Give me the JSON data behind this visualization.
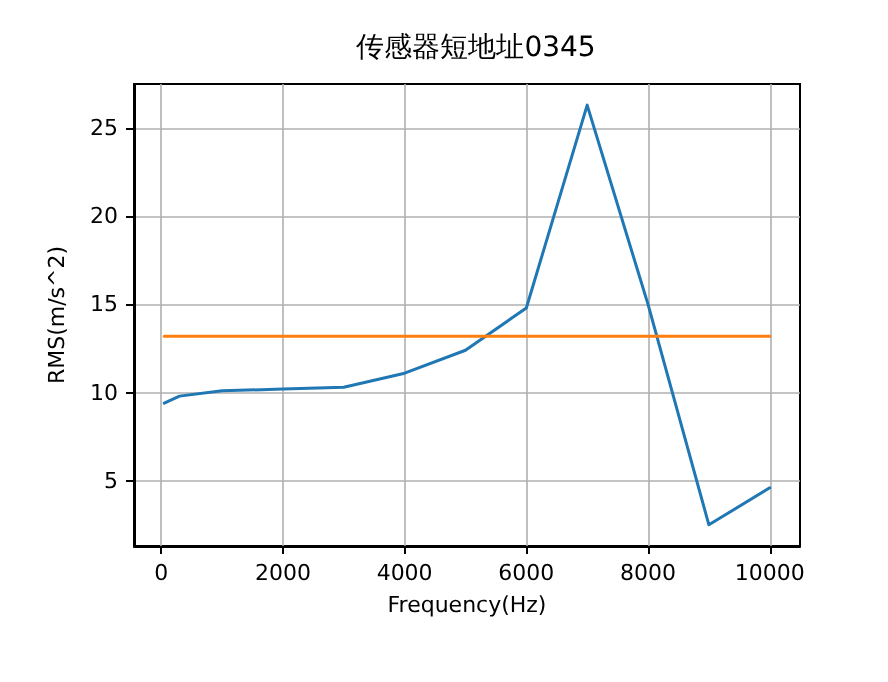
{
  "chart_data": {
    "type": "line",
    "title": "传感器短地址0345",
    "xlabel": "Frequency(Hz)",
    "ylabel": "RMS(m/s^2)",
    "xlim": [
      -447.5,
      10497.5
    ],
    "xticks": [
      0,
      2000,
      4000,
      6000,
      8000,
      10000
    ],
    "ylim": [
      1.3,
      27.5
    ],
    "yticks": [
      5,
      10,
      15,
      20,
      25
    ],
    "series": [
      {
        "color": "#1f77b4",
        "x": [
          50,
          300,
          1000,
          2000,
          3000,
          4000,
          5000,
          6000,
          7000,
          8000,
          9000,
          10000
        ],
        "values": [
          9.4,
          9.8,
          10.1,
          10.2,
          10.3,
          11.1,
          12.4,
          14.8,
          26.3,
          15,
          2.5,
          4.6
        ]
      },
      {
        "color": "#ff7f0e",
        "x": [
          50,
          10000
        ],
        "values": [
          13.2,
          13.2
        ]
      }
    ],
    "grid": true,
    "marker": "none",
    "line_style": "solid"
  }
}
